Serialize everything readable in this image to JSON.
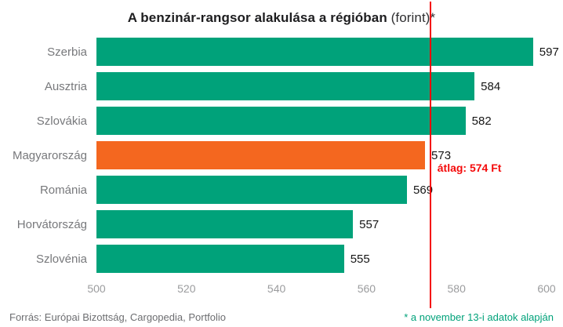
{
  "title": {
    "bold": "A benzinár-rangsor alakulása a régióban",
    "light": " (forint)*"
  },
  "footer": {
    "source": "Forrás: Európai Bizottság, Cargopedia, Portfolio",
    "footnote": "* a november 13-i adatok alapján"
  },
  "chart_data": {
    "type": "bar",
    "orientation": "horizontal",
    "title": "A benzinár-rangsor alakulása a régióban (forint)*",
    "categories": [
      "Szerbia",
      "Ausztria",
      "Szlovákia",
      "Magyarország",
      "Románia",
      "Horvátország",
      "Szlovénia"
    ],
    "values": [
      597,
      584,
      582,
      573,
      569,
      557,
      555
    ],
    "xlim": [
      500,
      600
    ],
    "x_ticks": [
      500,
      520,
      540,
      560,
      580,
      600
    ],
    "highlight_index": 3,
    "highlight_category": "Magyarország",
    "average_line": {
      "value": 574,
      "label": "átlag: 574 Ft",
      "color": "#f40b0b"
    },
    "colors": {
      "bar": "#00a27a",
      "highlight": "#f4671f"
    },
    "grid": false,
    "legend": false
  }
}
